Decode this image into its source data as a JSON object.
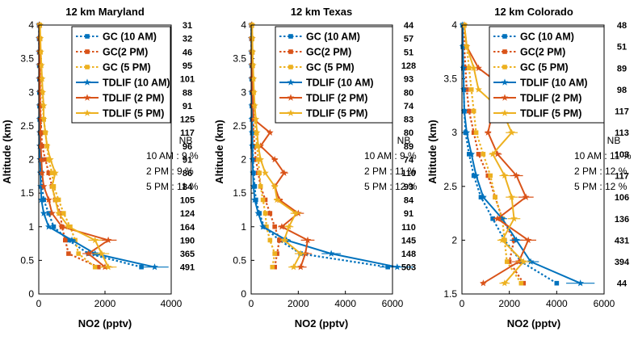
{
  "chart_data": [
    {
      "type": "line",
      "title": "12 km Maryland",
      "xlabel": "NO2 (pptv)",
      "ylabel": "Altitude (km)",
      "xlim": [
        0,
        4000
      ],
      "ylim": [
        0,
        4
      ],
      "xticks": [
        "0",
        "2000",
        "4000"
      ],
      "yticks": [
        "0",
        "0.5",
        "1",
        "1.5",
        "2",
        "2.5",
        "3",
        "3.5",
        "4"
      ],
      "legend": "top-right",
      "y": [
        0.4,
        0.6,
        0.8,
        1.0,
        1.2,
        1.4,
        1.6,
        1.8,
        2.0,
        2.2,
        2.4,
        2.6,
        2.8,
        3.0,
        3.2,
        3.4,
        3.6,
        3.8,
        4.0
      ],
      "counts": [
        "491",
        "365",
        "190",
        "164",
        "124",
        "105",
        "84",
        "86",
        "91",
        "96",
        "117",
        "125",
        "91",
        "88",
        "101",
        "95",
        "46",
        "32",
        "31"
      ],
      "series": [
        {
          "name": "GC (10 AM)",
          "color": "#0072BD",
          "dash": true,
          "marker": "square",
          "values": [
            3100,
            1500,
            900,
            450,
            300,
            150,
            100,
            80,
            60,
            50,
            40,
            30,
            25,
            20,
            20,
            15,
            15,
            10,
            10
          ]
        },
        {
          "name": "GC(2 PM)",
          "color": "#D95319",
          "dash": true,
          "marker": "square",
          "values": [
            1800,
            900,
            800,
            700,
            650,
            500,
            400,
            300,
            200,
            100,
            80,
            60,
            50,
            40,
            40,
            30,
            30,
            20,
            20
          ]
        },
        {
          "name": "GC (5 PM)",
          "color": "#EDB120",
          "dash": true,
          "marker": "square",
          "values": [
            1700,
            1200,
            1100,
            950,
            750,
            600,
            450,
            400,
            300,
            250,
            200,
            150,
            120,
            100,
            80,
            60,
            50,
            40,
            30
          ]
        },
        {
          "name": "TDLIF (10 AM)",
          "color": "#0072BD",
          "dash": false,
          "marker": "star",
          "values": [
            3500,
            1700,
            1000,
            300,
            150,
            80,
            60,
            50,
            40,
            30,
            30,
            25,
            20,
            20,
            15,
            15,
            10,
            10,
            10
          ]
        },
        {
          "name": "TDLIF (2 PM)",
          "color": "#D95319",
          "dash": false,
          "marker": "star",
          "values": [
            2000,
            1500,
            2100,
            700,
            400,
            300,
            150,
            100,
            80,
            60,
            50,
            50,
            40,
            40,
            30,
            30,
            20,
            20,
            20
          ]
        },
        {
          "name": "TDLIF (5 PM)",
          "color": "#EDB120",
          "dash": false,
          "marker": "star",
          "values": [
            2100,
            1900,
            1700,
            900,
            600,
            500,
            400,
            500,
            350,
            250,
            200,
            150,
            150,
            120,
            100,
            80,
            60,
            50,
            40
          ]
        }
      ],
      "nb": {
        "title": "NB",
        "lines": [
          "10 AM : 9 %",
          "2 PM : 9 %",
          "5 PM : 11 %"
        ]
      }
    },
    {
      "type": "line",
      "title": "12 km Texas",
      "xlabel": "NO2 (pptv)",
      "ylabel": "Altitude (km)",
      "xlim": [
        0,
        6000
      ],
      "ylim": [
        0,
        4
      ],
      "xticks": [
        "0",
        "2000",
        "4000",
        "6000"
      ],
      "yticks": [
        "0",
        "0.5",
        "1",
        "1.5",
        "2",
        "2.5",
        "3",
        "3.5",
        "4"
      ],
      "legend": "top-right",
      "y": [
        0.4,
        0.6,
        0.8,
        1.0,
        1.2,
        1.4,
        1.6,
        1.8,
        2.0,
        2.2,
        2.4,
        2.6,
        2.8,
        3.0,
        3.2,
        3.4,
        3.6,
        3.8,
        4.0
      ],
      "counts": [
        "503",
        "148",
        "145",
        "110",
        "91",
        "84",
        "93",
        "110",
        "74",
        "89",
        "80",
        "83",
        "74",
        "80",
        "93",
        "128",
        "51",
        "57",
        "44"
      ],
      "series": [
        {
          "name": "GC (10 AM)",
          "color": "#0072BD",
          "dash": true,
          "marker": "square",
          "values": [
            5800,
            2100,
            1200,
            550,
            350,
            200,
            150,
            100,
            80,
            60,
            50,
            40,
            30,
            25,
            20,
            20,
            15,
            15,
            10
          ]
        },
        {
          "name": "GC(2 PM)",
          "color": "#D95319",
          "dash": true,
          "marker": "square",
          "values": [
            1000,
            1100,
            1200,
            1000,
            800,
            600,
            400,
            300,
            200,
            150,
            100,
            80,
            60,
            50,
            40,
            30,
            30,
            20,
            20
          ]
        },
        {
          "name": "GC (5 PM)",
          "color": "#EDB120",
          "dash": true,
          "marker": "square",
          "values": [
            900,
            1000,
            800,
            650,
            600,
            500,
            400,
            350,
            300,
            250,
            200,
            150,
            120,
            100,
            80,
            60,
            50,
            40,
            30
          ]
        },
        {
          "name": "TDLIF (10 AM)",
          "color": "#0072BD",
          "dash": false,
          "marker": "star",
          "values": [
            6200,
            3400,
            1500,
            500,
            300,
            150,
            100,
            80,
            60,
            50,
            40,
            30,
            25,
            20,
            20,
            15,
            15,
            10,
            10
          ]
        },
        {
          "name": "TDLIF (2 PM)",
          "color": "#D95319",
          "dash": false,
          "marker": "star",
          "values": [
            2100,
            2300,
            2400,
            1300,
            2000,
            1200,
            1000,
            1400,
            1000,
            400,
            800,
            100,
            80,
            60,
            50,
            40,
            30,
            20,
            20
          ]
        },
        {
          "name": "TDLIF (5 PM)",
          "color": "#EDB120",
          "dash": false,
          "marker": "star",
          "values": [
            1800,
            2100,
            1400,
            1600,
            1900,
            1100,
            1000,
            600,
            400,
            300,
            250,
            200,
            150,
            120,
            100,
            80,
            60,
            50,
            40
          ]
        }
      ],
      "nb": {
        "title": "NB",
        "lines": [
          "10 AM : 9 %",
          "2 PM : 11 %",
          "5 PM : 12 %"
        ]
      }
    },
    {
      "type": "line",
      "title": "12 km Colorado",
      "xlabel": "NO2 (pptv)",
      "ylabel": "Altitude (km)",
      "xlim": [
        0,
        6000
      ],
      "ylim": [
        1.5,
        4
      ],
      "xticks": [
        "0",
        "2000",
        "4000",
        "6000"
      ],
      "yticks": [
        "1.5",
        "2",
        "2.5",
        "3",
        "3.5",
        "4"
      ],
      "legend": "top-right",
      "y": [
        1.6,
        1.8,
        2.0,
        2.2,
        2.4,
        2.6,
        2.8,
        3.0,
        3.2,
        3.4,
        3.6,
        3.8,
        4.0
      ],
      "counts": [
        "44",
        "394",
        "431",
        "136",
        "106",
        "117",
        "103",
        "113",
        "117",
        "98",
        "89",
        "51",
        "48"
      ],
      "series": [
        {
          "name": "GC (10 AM)",
          "color": "#0072BD",
          "dash": true,
          "marker": "square",
          "values": [
            4000,
            2500,
            1800,
            1300,
            800,
            500,
            300,
            150,
            100,
            80,
            60,
            40,
            30
          ]
        },
        {
          "name": "GC(2 PM)",
          "color": "#D95319",
          "dash": true,
          "marker": "square",
          "values": [
            2600,
            2000,
            2200,
            1700,
            1400,
            1100,
            700,
            500,
            300,
            200,
            150,
            100,
            80
          ]
        },
        {
          "name": "GC (5 PM)",
          "color": "#EDB120",
          "dash": true,
          "marker": "square",
          "values": [
            2500,
            1900,
            1800,
            1700,
            1400,
            1200,
            900,
            600,
            500,
            400,
            300,
            200,
            100
          ]
        },
        {
          "name": "TDLIF (10 AM)",
          "color": "#0072BD",
          "dash": false,
          "marker": "star",
          "values": [
            5000,
            2900,
            2300,
            1700,
            900,
            600,
            400,
            200,
            100,
            80,
            60,
            40,
            30
          ]
        },
        {
          "name": "TDLIF (2 PM)",
          "color": "#D95319",
          "dash": false,
          "marker": "star",
          "values": [
            900,
            2400,
            2800,
            1500,
            2700,
            2300,
            1500,
            1100,
            1300,
            1900,
            700,
            200,
            100
          ]
        },
        {
          "name": "TDLIF (5 PM)",
          "color": "#EDB120",
          "dash": false,
          "marker": "star",
          "values": [
            1800,
            2600,
            1700,
            2200,
            2100,
            1800,
            1300,
            2100,
            1700,
            700,
            500,
            200,
            100
          ]
        }
      ],
      "nb": {
        "title": "NB",
        "lines": [
          "10 AM : 11 %",
          "2 PM : 12 %",
          "5 PM : 12 %"
        ]
      }
    }
  ]
}
